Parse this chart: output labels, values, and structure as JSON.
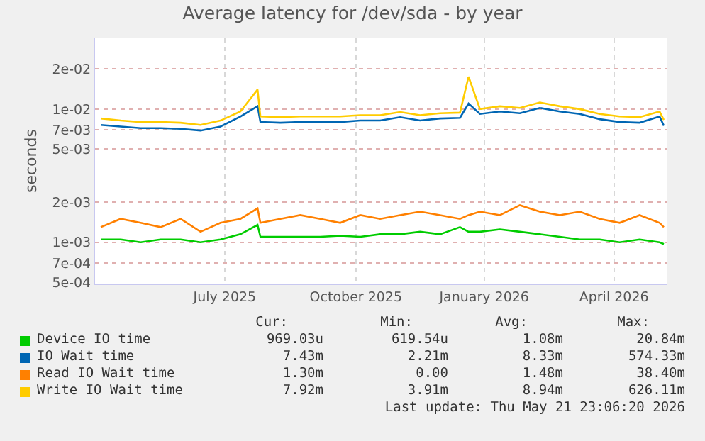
{
  "chart_data": {
    "type": "line",
    "title": "Average latency for /dev/sda - by year",
    "ylabel": "seconds",
    "x": [
      "2025-04-20",
      "2025-05-04",
      "2025-05-18",
      "2025-06-01",
      "2025-06-15",
      "2025-06-29",
      "2025-07-13",
      "2025-07-27",
      "2025-08-08",
      "2025-08-10",
      "2025-08-24",
      "2025-09-07",
      "2025-09-21",
      "2025-10-05",
      "2025-10-19",
      "2025-11-02",
      "2025-11-16",
      "2025-11-30",
      "2025-12-14",
      "2025-12-28",
      "2026-01-03",
      "2026-01-11",
      "2026-01-25",
      "2026-02-08",
      "2026-02-22",
      "2026-03-08",
      "2026-03-22",
      "2026-04-05",
      "2026-04-19",
      "2026-05-03",
      "2026-05-17",
      "2026-05-20"
    ],
    "series": [
      {
        "name": "Device IO time",
        "color": "#00cc00",
        "values": [
          0.00105,
          0.00105,
          0.001,
          0.00105,
          0.00105,
          0.001,
          0.00105,
          0.00115,
          0.00135,
          0.0011,
          0.0011,
          0.0011,
          0.0011,
          0.00112,
          0.0011,
          0.00115,
          0.00115,
          0.0012,
          0.00115,
          0.0013,
          0.0012,
          0.0012,
          0.00125,
          0.0012,
          0.00115,
          0.0011,
          0.00105,
          0.00105,
          0.001,
          0.00105,
          0.001,
          0.00097
        ]
      },
      {
        "name": "IO Wait time",
        "color": "#0066b3",
        "values": [
          0.0076,
          0.0074,
          0.0072,
          0.0072,
          0.0071,
          0.0069,
          0.0074,
          0.0088,
          0.0105,
          0.008,
          0.0079,
          0.008,
          0.008,
          0.008,
          0.0082,
          0.0082,
          0.0087,
          0.0082,
          0.0085,
          0.0086,
          0.011,
          0.0092,
          0.0096,
          0.0093,
          0.0102,
          0.0096,
          0.0092,
          0.0084,
          0.008,
          0.0079,
          0.0088,
          0.0075
        ]
      },
      {
        "name": "Read IO Wait time",
        "color": "#ff8000",
        "values": [
          0.0013,
          0.0015,
          0.0014,
          0.0013,
          0.0015,
          0.0012,
          0.0014,
          0.0015,
          0.0018,
          0.0014,
          0.0015,
          0.0016,
          0.0015,
          0.0014,
          0.0016,
          0.0015,
          0.0016,
          0.0017,
          0.0016,
          0.0015,
          0.0016,
          0.0017,
          0.0016,
          0.0019,
          0.0017,
          0.0016,
          0.0017,
          0.0015,
          0.0014,
          0.0016,
          0.0014,
          0.0013
        ]
      },
      {
        "name": "Write IO Wait time",
        "color": "#ffcc00",
        "values": [
          0.0085,
          0.0082,
          0.008,
          0.008,
          0.0079,
          0.0076,
          0.0082,
          0.0096,
          0.014,
          0.0088,
          0.0087,
          0.0088,
          0.0088,
          0.0088,
          0.009,
          0.009,
          0.0095,
          0.009,
          0.0093,
          0.0094,
          0.0175,
          0.01,
          0.0105,
          0.0102,
          0.0112,
          0.0105,
          0.01,
          0.0092,
          0.0088,
          0.0087,
          0.0096,
          0.0083
        ]
      }
    ],
    "xlim": [
      "2025-04-16",
      "2026-05-22"
    ],
    "xticks": [
      {
        "value": "2025-07-16",
        "label": "July 2025"
      },
      {
        "value": "2025-10-16",
        "label": "October 2025"
      },
      {
        "value": "2026-01-14",
        "label": "January 2026"
      },
      {
        "value": "2026-04-15",
        "label": "April 2026"
      }
    ],
    "ylim": [
      0.00049,
      0.034
    ],
    "yticks": [
      {
        "value": 0.0005,
        "label": "5e-04"
      },
      {
        "value": 0.0007,
        "label": "7e-04"
      },
      {
        "value": 0.001,
        "label": "1e-03"
      },
      {
        "value": 0.002,
        "label": "2e-03"
      },
      {
        "value": 0.005,
        "label": "5e-03"
      },
      {
        "value": 0.007,
        "label": "7e-03"
      },
      {
        "value": 0.01,
        "label": "1e-02"
      },
      {
        "value": 0.02,
        "label": "2e-02"
      }
    ],
    "log": "y",
    "grid": true,
    "legend": "bottom",
    "marker": "none",
    "line_style": "solid",
    "annotations": [
      "Cur:",
      "Min:",
      "Avg:",
      "Max:",
      "969.03u",
      "619.54u",
      "1.08m",
      "20.84m",
      "7.43m",
      "2.21m",
      "8.33m",
      "574.33m",
      "1.30m",
      "0.00",
      "1.48m",
      "38.40m",
      "7.92m",
      "3.91m",
      "8.94m",
      "626.11m",
      "Last update: Thu May 21 23:06:20 2026"
    ]
  }
}
